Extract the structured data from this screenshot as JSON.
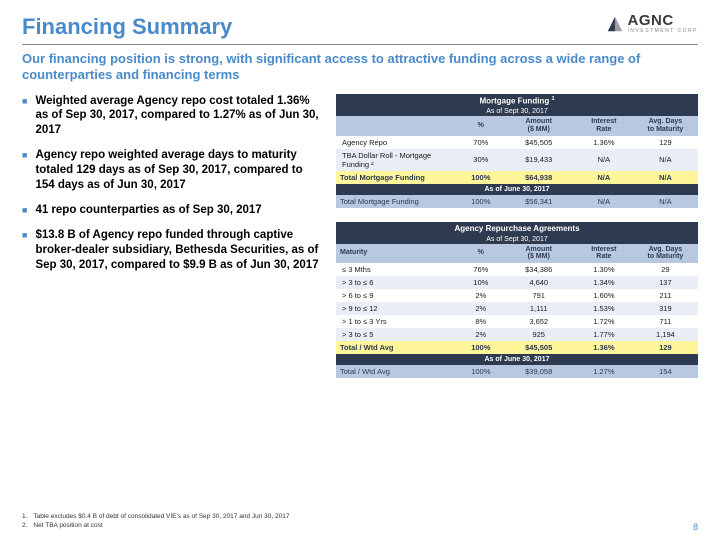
{
  "header": {
    "title": "Financing Summary",
    "logo_text": "AGNC",
    "logo_sub": "INVESTMENT CORP"
  },
  "subtitle": "Our financing position is strong, with significant access to attractive funding across a wide range of counterparties and financing terms",
  "bullets": [
    "Weighted average Agency repo cost totaled 1.36% as of Sep 30, 2017, compared to 1.27% as of Jun 30, 2017",
    "Agency repo weighted average days to maturity totaled 129 days as of Sep 30, 2017, compared to 154 days as of Jun 30, 2017",
    "41 repo counterparties as of Sep 30, 2017",
    "$13.8 B of Agency repo funded through captive broker-dealer subsidiary, Bethesda Securities, as of Sep 30, 2017, compared to $9.9 B as of Jun 30, 2017"
  ],
  "table1": {
    "title": "Mortgage Funding",
    "title_sup": "1",
    "subtitle": "As of Sept 30, 2017",
    "headers": [
      "",
      "%",
      "Amount ($ MM)",
      "Interest Rate",
      "Avg. Days to Maturity"
    ],
    "rows": [
      {
        "cells": [
          "Agency Repo",
          "70%",
          "$45,505",
          "1.36%",
          "129"
        ]
      },
      {
        "cells": [
          "TBA Dollar Roll - Mortgage Funding ²",
          "30%",
          "$19,433",
          "N/A",
          "N/A"
        ]
      }
    ],
    "total": [
      "Total Mortgage Funding",
      "100%",
      "$64,938",
      "N/A",
      "N/A"
    ],
    "prior_label": "As of June 30, 2017",
    "prior": [
      "Total Mortgage Funding",
      "100%",
      "$56,341",
      "N/A",
      "N/A"
    ]
  },
  "table2": {
    "title": "Agency Repurchase Agreements",
    "subtitle": "As of Sept 30, 2017",
    "headers": [
      "Maturity",
      "%",
      "Amount ($ MM)",
      "Interest Rate",
      "Avg. Days to Maturity"
    ],
    "rows": [
      {
        "cells": [
          "≤ 3 Mths",
          "76%",
          "$34,386",
          "1.30%",
          "29"
        ]
      },
      {
        "cells": [
          "> 3 to ≤ 6",
          "10%",
          "4,640",
          "1.34%",
          "137"
        ]
      },
      {
        "cells": [
          "> 6 to ≤ 9",
          "2%",
          "791",
          "1.60%",
          "211"
        ]
      },
      {
        "cells": [
          "> 9 to ≤ 12",
          "2%",
          "1,111",
          "1.53%",
          "319"
        ]
      },
      {
        "cells": [
          "> 1 to ≤ 3 Yrs",
          "8%",
          "3,652",
          "1.72%",
          "711"
        ]
      },
      {
        "cells": [
          "> 3 to ≤ 5",
          "2%",
          "925",
          "1.77%",
          "1,194"
        ]
      }
    ],
    "total": [
      "Total / Wtd Avg",
      "100%",
      "$45,505",
      "1.36%",
      "129"
    ],
    "prior_label": "As of June 30, 2017",
    "prior": [
      "Total / Wtd Avg",
      "100%",
      "$39,058",
      "1.27%",
      "154"
    ]
  },
  "footnotes": [
    {
      "n": "1.",
      "t": "Table excludes $0.4 B of debt of consolidated VIE's as of Sep 30, 2017 and Jun 30, 2017"
    },
    {
      "n": "2.",
      "t": "Net TBA position at cost"
    }
  ],
  "page_number": "8",
  "colors": {
    "title_blue": "#4a8ac9",
    "table_dark": "#2e3a4f",
    "table_light": "#b8c8e0",
    "highlight_yellow": "#fff59a"
  }
}
